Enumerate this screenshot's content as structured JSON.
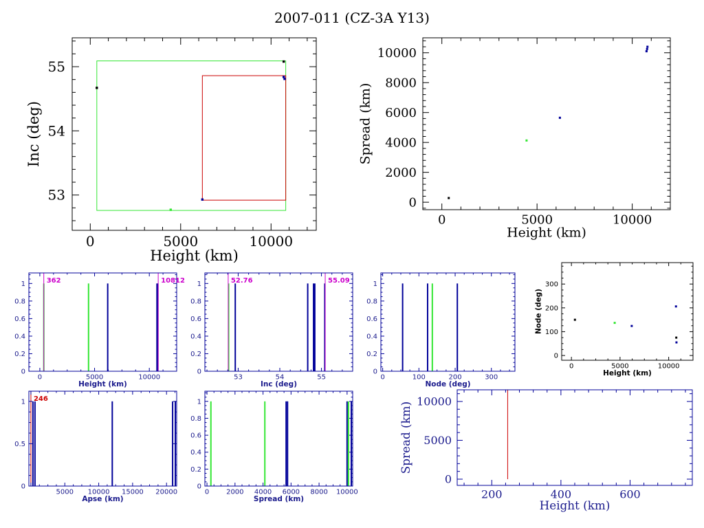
{
  "title": "2007-011 (CZ-3A Y13)",
  "colors": {
    "black": "#000000",
    "green": "#33e633",
    "red": "#cc0000",
    "blue": "#000099",
    "navy": "#1a1a8c",
    "magenta": "#cc00cc"
  },
  "chart_data": [
    {
      "id": "inc-height",
      "type": "scatter",
      "xlabel": "Height (km)",
      "ylabel": "Inc (deg)",
      "xlim": [
        -1000,
        12500
      ],
      "ylim": [
        52.45,
        55.45
      ],
      "xticks": [
        0,
        5000,
        10000
      ],
      "yticks": [
        53,
        54,
        55
      ],
      "rects": [
        {
          "color": "green",
          "x": [
            362,
            10812
          ],
          "y": [
            52.76,
            55.09
          ]
        },
        {
          "color": "red",
          "x": [
            6200,
            10812
          ],
          "y": [
            52.92,
            54.86
          ]
        }
      ],
      "points": [
        {
          "x": 362,
          "y": 54.67,
          "color": "black"
        },
        {
          "x": 4450,
          "y": 52.77,
          "color": "green"
        },
        {
          "x": 6200,
          "y": 52.93,
          "color": "blue"
        },
        {
          "x": 10700,
          "y": 55.08,
          "color": "black"
        },
        {
          "x": 10700,
          "y": 54.84,
          "color": "blue"
        },
        {
          "x": 10750,
          "y": 54.81,
          "color": "blue"
        }
      ]
    },
    {
      "id": "spread-height",
      "type": "scatter",
      "xlabel": "Height (km)",
      "ylabel": "Spread (km)",
      "xlim": [
        -1000,
        12000
      ],
      "ylim": [
        -500,
        11000
      ],
      "xticks": [
        0,
        5000,
        10000
      ],
      "yticks": [
        0,
        2000,
        4000,
        6000,
        8000,
        10000
      ],
      "points": [
        {
          "x": 362,
          "y": 280,
          "color": "black"
        },
        {
          "x": 4450,
          "y": 4130,
          "color": "green"
        },
        {
          "x": 6200,
          "y": 5650,
          "color": "blue"
        },
        {
          "x": 10750,
          "y": 10100,
          "color": "blue"
        },
        {
          "x": 10780,
          "y": 10250,
          "color": "blue"
        },
        {
          "x": 10800,
          "y": 10400,
          "color": "blue"
        }
      ]
    },
    {
      "id": "hist-height",
      "type": "bar",
      "xlabel": "Height (km)",
      "ylabel": "",
      "xlim": [
        -1000,
        12500
      ],
      "ylim": [
        0,
        1.12
      ],
      "xticks": [
        0,
        5000,
        10000
      ],
      "yticks": [
        0,
        0.2,
        0.4,
        0.6,
        0.8,
        1
      ],
      "bars": [
        {
          "x": 362,
          "color": "green",
          "value": 1
        },
        {
          "x": 4450,
          "color": "green",
          "value": 1
        },
        {
          "x": 6200,
          "color": "blue",
          "value": 1
        },
        {
          "x": 10700,
          "color": "blue",
          "value": 1
        },
        {
          "x": 10780,
          "color": "blue",
          "value": 1
        }
      ],
      "markers": [
        {
          "x": 362,
          "label": "362",
          "color": "magenta",
          "anchor": "start"
        },
        {
          "x": 10812,
          "label": "10812",
          "color": "magenta",
          "anchor": "start"
        }
      ]
    },
    {
      "id": "hist-inc",
      "type": "bar",
      "xlabel": "Inc (deg)",
      "ylabel": "",
      "xlim": [
        52.2,
        55.75
      ],
      "ylim": [
        0,
        1.12
      ],
      "xticks": [
        53,
        54,
        55
      ],
      "yticks": [
        0,
        0.2,
        0.4,
        0.6,
        0.8,
        1
      ],
      "bars": [
        {
          "x": 52.77,
          "color": "green",
          "value": 1
        },
        {
          "x": 52.93,
          "color": "blue",
          "value": 1
        },
        {
          "x": 54.67,
          "color": "blue",
          "value": 1
        },
        {
          "x": 54.81,
          "color": "blue",
          "value": 1
        },
        {
          "x": 54.84,
          "color": "blue",
          "value": 1
        },
        {
          "x": 55.08,
          "color": "blue",
          "value": 1
        }
      ],
      "markers": [
        {
          "x": 52.76,
          "label": "52.76",
          "color": "magenta",
          "anchor": "start"
        },
        {
          "x": 55.09,
          "label": "55.09",
          "color": "magenta",
          "anchor": "start"
        }
      ]
    },
    {
      "id": "hist-node",
      "type": "bar",
      "xlabel": "Node (deg)",
      "ylabel": "",
      "xlim": [
        -5,
        365
      ],
      "ylim": [
        0,
        1.12
      ],
      "xticks": [
        0,
        100,
        200,
        300
      ],
      "yticks": [
        0,
        0.2,
        0.4,
        0.6,
        0.8,
        1
      ],
      "bars": [
        {
          "x": 55,
          "color": "blue",
          "value": 1
        },
        {
          "x": 124,
          "color": "blue",
          "value": 1
        },
        {
          "x": 137,
          "color": "green",
          "value": 1
        },
        {
          "x": 206,
          "color": "blue",
          "value": 1
        }
      ],
      "markers": []
    },
    {
      "id": "node-height",
      "type": "scatter",
      "xlabel": "Height (km)",
      "ylabel": "Node (deg)",
      "xlim": [
        -1000,
        12500
      ],
      "ylim": [
        -20,
        390
      ],
      "xticks": [
        0,
        5000,
        10000
      ],
      "yticks": [
        0,
        100,
        200,
        300
      ],
      "points": [
        {
          "x": 362,
          "y": 150,
          "color": "black"
        },
        {
          "x": 4450,
          "y": 137,
          "color": "green"
        },
        {
          "x": 6200,
          "y": 124,
          "color": "blue"
        },
        {
          "x": 10750,
          "y": 206,
          "color": "blue"
        },
        {
          "x": 10780,
          "y": 75,
          "color": "black"
        },
        {
          "x": 10800,
          "y": 55,
          "color": "blue"
        }
      ]
    },
    {
      "id": "hist-apse",
      "type": "bar",
      "xlabel": "Apse (km)",
      "ylabel": "",
      "xlim": [
        -300,
        21500
      ],
      "ylim": [
        0,
        1.12
      ],
      "xticks": [
        5000,
        10000,
        15000,
        20000
      ],
      "yticks": [
        0,
        0.5,
        1
      ],
      "bars": [
        {
          "x": 300,
          "color": "blue",
          "value": 1
        },
        {
          "x": 600,
          "color": "blue",
          "value": 1
        },
        {
          "x": 12000,
          "color": "blue",
          "value": 1
        },
        {
          "x": 20900,
          "color": "blue",
          "value": 1
        },
        {
          "x": 21300,
          "color": "blue",
          "value": 1
        }
      ],
      "markers": [
        {
          "x": 0,
          "label": "246",
          "color": "red",
          "anchor": "start"
        }
      ]
    },
    {
      "id": "hist-spread",
      "type": "bar",
      "xlabel": "Spread (km)",
      "ylabel": "",
      "xlim": [
        -150,
        10400
      ],
      "ylim": [
        0,
        1.12
      ],
      "xticks": [
        0,
        2000,
        4000,
        6000,
        8000,
        10000
      ],
      "yticks": [
        0,
        0.2,
        0.4,
        0.6,
        0.8,
        1
      ],
      "bars": [
        {
          "x": 280,
          "color": "green",
          "value": 1
        },
        {
          "x": 4130,
          "color": "green",
          "value": 1
        },
        {
          "x": 5650,
          "color": "blue",
          "value": 1
        },
        {
          "x": 5750,
          "color": "blue",
          "value": 1
        },
        {
          "x": 10000,
          "color": "blue",
          "value": 1
        },
        {
          "x": 10100,
          "color": "green",
          "value": 1
        },
        {
          "x": 10300,
          "color": "blue",
          "value": 1
        }
      ],
      "markers": []
    },
    {
      "id": "spread-height-low",
      "type": "line",
      "xlabel": "Height (km)",
      "ylabel": "Spread (km)",
      "xlim": [
        100,
        780
      ],
      "ylim": [
        -800,
        11500
      ],
      "xticks": [
        200,
        400,
        600
      ],
      "yticks": [
        0,
        5000,
        10000
      ],
      "series": [
        {
          "color": "red",
          "x": [
            246,
            246
          ],
          "y": [
            0,
            11500
          ]
        }
      ]
    }
  ]
}
